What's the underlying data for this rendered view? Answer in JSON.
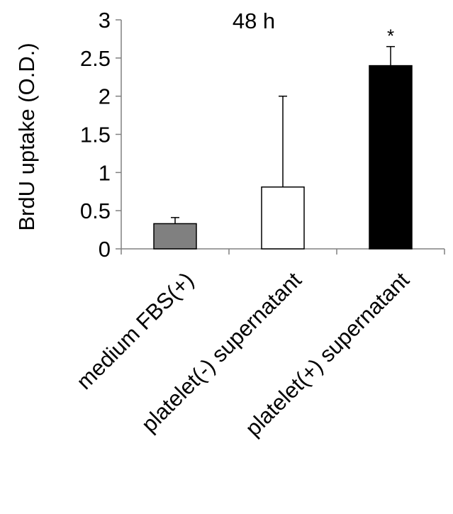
{
  "chart_data": {
    "type": "bar",
    "title": "48 h",
    "xlabel": "",
    "ylabel": "BrdU uptake (O.D.)",
    "ylim": [
      0,
      3
    ],
    "yticks": [
      0,
      0.5,
      1,
      1.5,
      2,
      2.5,
      3
    ],
    "ytick_labels": [
      "0",
      "0.5",
      "1",
      "1.5",
      "2",
      "2.5",
      "3"
    ],
    "categories": [
      "medium FBS(+)",
      "platelet(-) supernatant",
      "platelet(+) supernatant"
    ],
    "values": [
      0.33,
      0.81,
      2.4
    ],
    "error_upper": [
      0.08,
      1.19,
      0.25
    ],
    "bar_colors": [
      "#808080",
      "#ffffff",
      "#000000"
    ],
    "significance": [
      "",
      "",
      "*"
    ],
    "grid": false,
    "legend": "none"
  }
}
